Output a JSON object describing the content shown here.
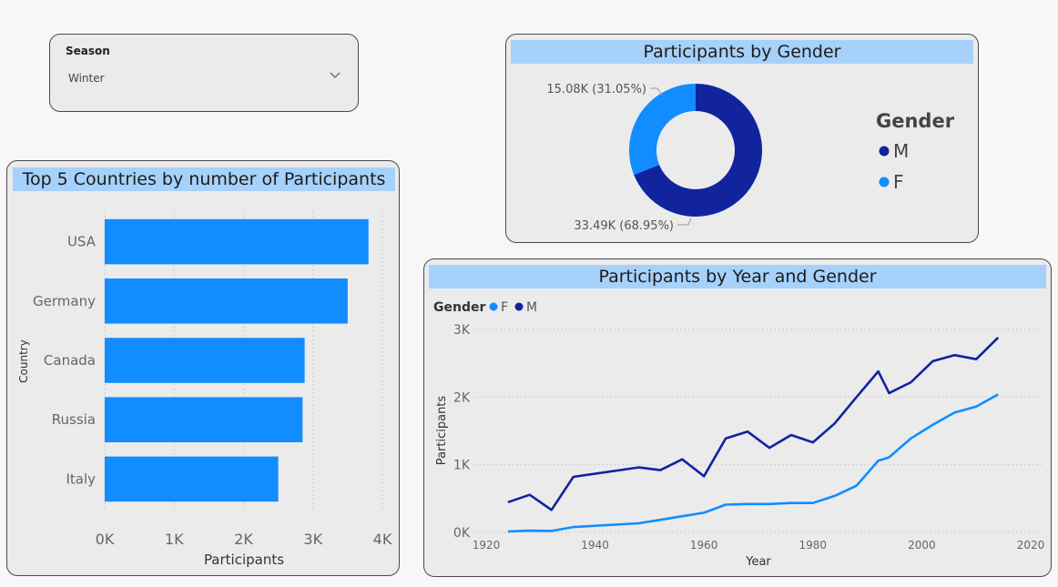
{
  "slicer": {
    "label": "Season",
    "value": "Winter"
  },
  "bar_card": {
    "title": "Top 5 Countries by number of Participants"
  },
  "donut_card": {
    "title": "Participants by Gender",
    "legend_title": "Gender"
  },
  "line_card": {
    "title": "Participants by Year and Gender",
    "legend_title": "Gender"
  },
  "colors": {
    "M": "#12239e",
    "F": "#118dff",
    "bar": "#118dff",
    "title_bg": "#a6d1fb"
  },
  "chart_data": [
    {
      "type": "bar",
      "orientation": "horizontal",
      "title": "Top 5 Countries by number of Participants",
      "categories": [
        "USA",
        "Germany",
        "Canada",
        "Russia",
        "Italy"
      ],
      "values": [
        3800,
        3500,
        2880,
        2850,
        2500
      ],
      "xlabel": "Participants",
      "ylabel": "Country",
      "xlim": [
        0,
        4000
      ],
      "xticks": [
        0,
        1000,
        2000,
        3000,
        4000
      ],
      "xtick_labels": [
        "0K",
        "1K",
        "2K",
        "3K",
        "4K"
      ],
      "grid": true
    },
    {
      "type": "pie",
      "subtype": "donut",
      "title": "Participants by Gender",
      "legend_title": "Gender",
      "legend_position": "right",
      "slices": [
        {
          "name": "M",
          "value": 33490,
          "label": "33.49K (68.95%)"
        },
        {
          "name": "F",
          "value": 15080,
          "label": "15.08K (31.05%)"
        }
      ]
    },
    {
      "type": "line",
      "title": "Participants by Year and Gender",
      "legend_title": "Gender",
      "legend_position": "top-left",
      "xlabel": "Year",
      "ylabel": "Participants",
      "xlim": [
        1918,
        2022
      ],
      "ylim": [
        0,
        3000
      ],
      "xticks": [
        1920,
        1940,
        1960,
        1980,
        2000,
        2020
      ],
      "yticks": [
        0,
        1000,
        2000,
        3000
      ],
      "ytick_labels": [
        "0K",
        "1K",
        "2K",
        "3K"
      ],
      "grid": true,
      "series": [
        {
          "name": "F",
          "x": [
            1924,
            1928,
            1932,
            1936,
            1948,
            1952,
            1956,
            1960,
            1964,
            1968,
            1972,
            1976,
            1980,
            1984,
            1988,
            1992,
            1994,
            1998,
            2002,
            2006,
            2010,
            2014
          ],
          "y": [
            13,
            26,
            21,
            80,
            135,
            185,
            240,
            290,
            410,
            420,
            420,
            435,
            435,
            540,
            690,
            1060,
            1110,
            1390,
            1590,
            1770,
            1860,
            2040
          ]
        },
        {
          "name": "M",
          "x": [
            1924,
            1928,
            1932,
            1936,
            1948,
            1952,
            1956,
            1960,
            1964,
            1968,
            1972,
            1976,
            1980,
            1984,
            1988,
            1992,
            1994,
            1998,
            2002,
            2006,
            2010,
            2014
          ],
          "y": [
            447,
            555,
            332,
            820,
            960,
            920,
            1080,
            830,
            1390,
            1490,
            1250,
            1440,
            1330,
            1610,
            2000,
            2380,
            2060,
            2220,
            2530,
            2620,
            2560,
            2880
          ]
        }
      ]
    }
  ]
}
